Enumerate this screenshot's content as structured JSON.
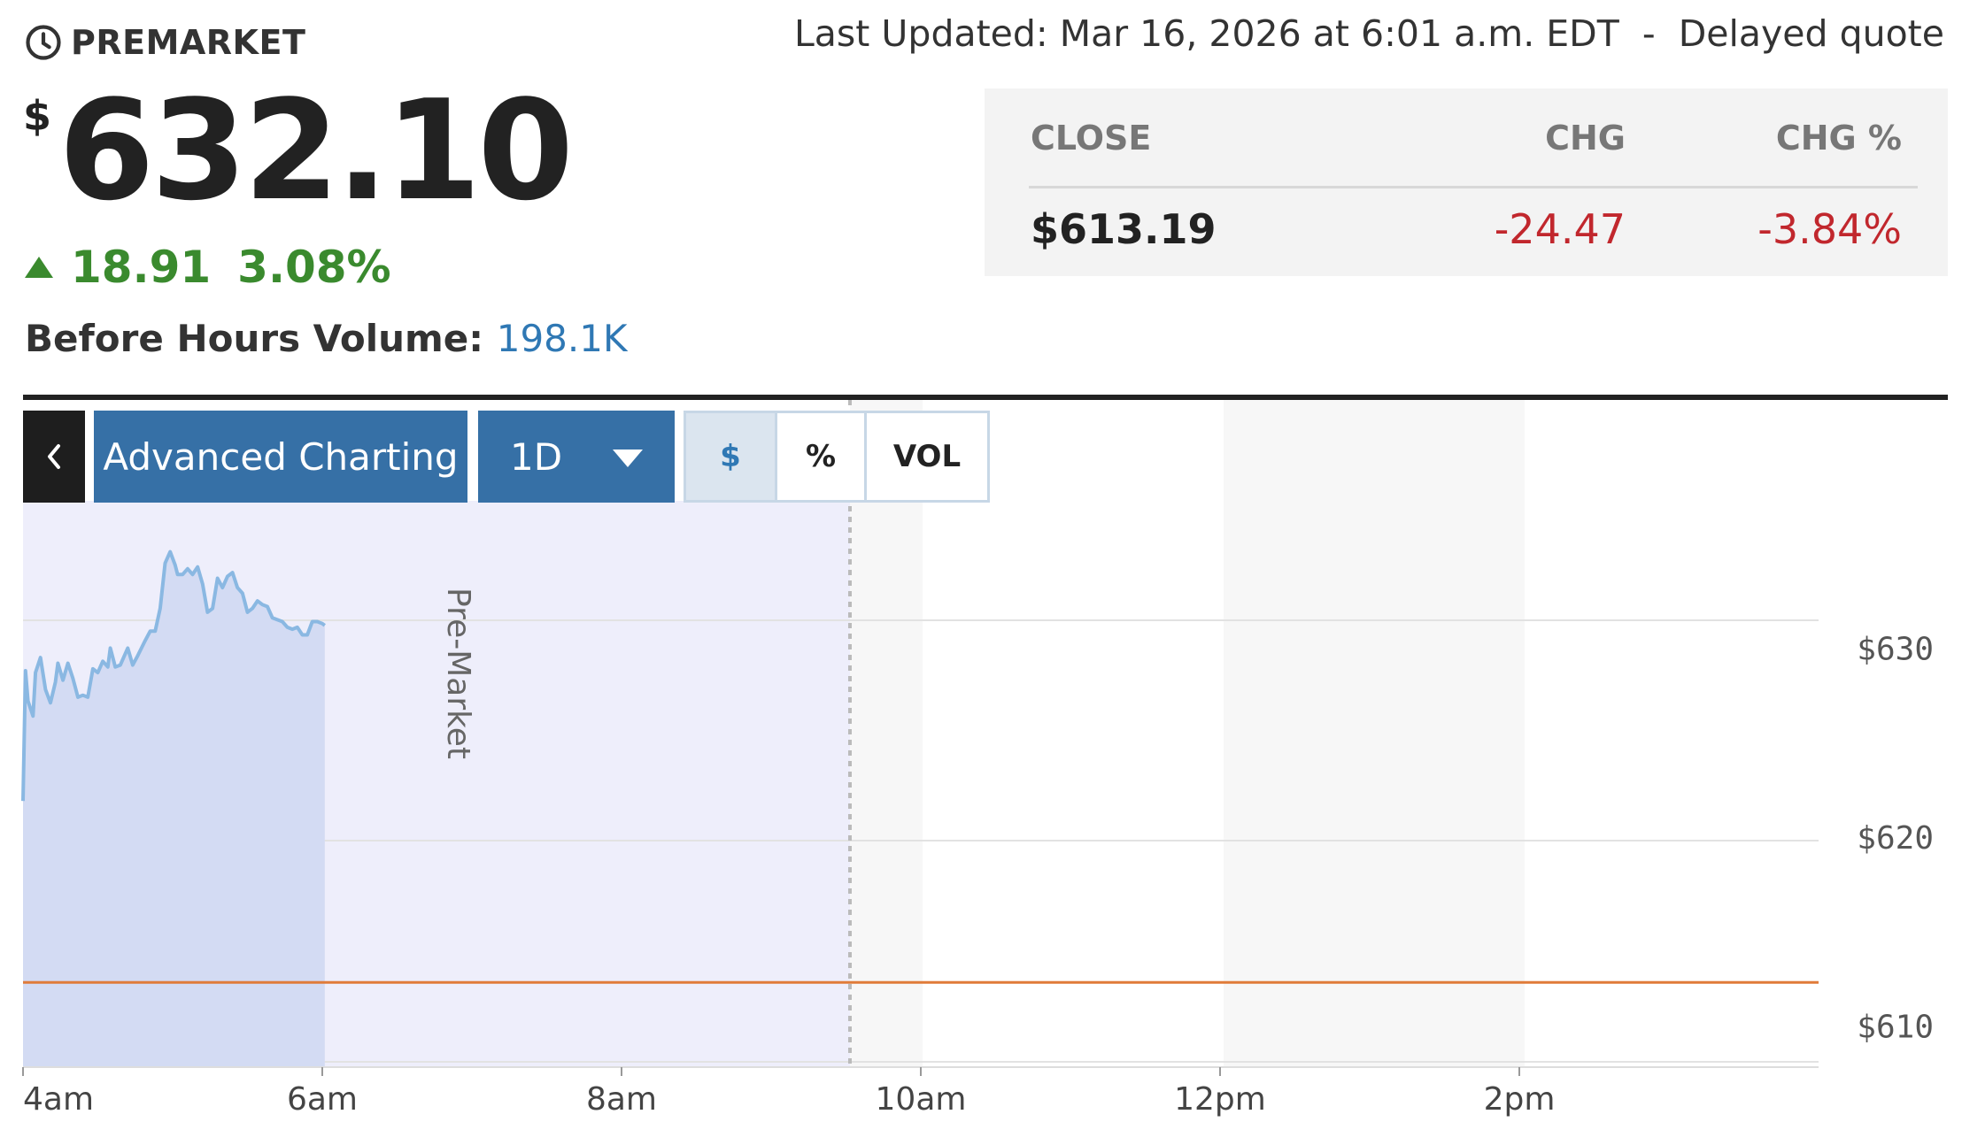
{
  "quote": {
    "session_label": "PREMARKET",
    "currency_symbol": "$",
    "price": "632.10",
    "change": "18.91",
    "change_percent": "3.08%",
    "volume_label": "Before Hours Volume:",
    "volume_value": "198.1K",
    "last_updated": "Last Updated: Mar 16, 2026 at 6:01 a.m. EDT",
    "separator": "-",
    "quote_type": "Delayed quote"
  },
  "close_table": {
    "headers": [
      "CLOSE",
      "CHG",
      "CHG %"
    ],
    "values": [
      "$613.19",
      "-24.47",
      "-3.84%"
    ]
  },
  "toolbar": {
    "back_icon": "chevron-left-icon",
    "advanced_charting_label": "Advanced Charting",
    "range_label": "1D",
    "range_icon": "caret-down-icon",
    "modes": [
      "$",
      "%",
      "VOL"
    ],
    "selected_mode": "$"
  },
  "colors": {
    "up": "#3a8a2e",
    "down": "#c1272d",
    "accent": "#3670a6",
    "line": "#8ab8e2",
    "previous_close_line": "#e07b39"
  },
  "chart_data": {
    "type": "area",
    "session_label": "Pre-Market",
    "x_ticks": [
      "4am",
      "6am",
      "8am",
      "10am",
      "12pm",
      "2pm"
    ],
    "y_ticks": [
      "$610",
      "$620",
      "$630"
    ],
    "ylim": [
      608.7,
      638.7
    ],
    "xlim": [
      "4:00",
      "16:00"
    ],
    "market_open": "9:30",
    "previous_close": 613.19,
    "series": [
      {
        "x": [
          "4:00",
          "4:01",
          "4:02",
          "4:04",
          "4:05",
          "4:07",
          "4:09",
          "4:11",
          "4:13",
          "4:14",
          "4:16",
          "4:18",
          "4:20",
          "4:22",
          "4:24",
          "4:26",
          "4:28",
          "4:30",
          "4:32",
          "4:34",
          "4:35",
          "4:37",
          "4:39",
          "4:42",
          "4:44",
          "4:46",
          "4:49",
          "4:51",
          "4:53",
          "4:55",
          "4:57",
          "4:59",
          "5:01",
          "5:02",
          "5:04",
          "5:06",
          "5:08",
          "5:10",
          "5:12",
          "5:14",
          "5:16",
          "5:18",
          "5:20",
          "5:22",
          "5:24",
          "5:26",
          "5:28",
          "5:30",
          "5:32",
          "5:34",
          "5:36",
          "5:38",
          "5:40",
          "5:42",
          "5:44",
          "5:46",
          "5:48",
          "5:50",
          "5:52",
          "5:54",
          "5:56",
          "5:58",
          "6:00",
          "6:01"
        ],
        "y": [
          622.8,
          629.7,
          628.1,
          627.3,
          629.6,
          630.4,
          628.7,
          628.0,
          629.1,
          630.1,
          629.2,
          630.1,
          629.3,
          628.3,
          628.4,
          628.3,
          629.8,
          629.6,
          630.2,
          629.9,
          630.9,
          629.9,
          630.0,
          630.9,
          630.0,
          630.5,
          631.3,
          631.8,
          631.8,
          633.0,
          635.4,
          636.0,
          635.3,
          634.8,
          634.8,
          635.1,
          634.8,
          635.2,
          634.3,
          632.8,
          633.0,
          634.6,
          634.1,
          634.7,
          634.9,
          634.1,
          633.8,
          632.8,
          633.0,
          633.4,
          633.2,
          633.1,
          632.5,
          632.4,
          632.3,
          632.0,
          631.9,
          632.0,
          631.6,
          631.6,
          632.3,
          632.3,
          632.2,
          632.1
        ]
      }
    ],
    "grid": true
  }
}
